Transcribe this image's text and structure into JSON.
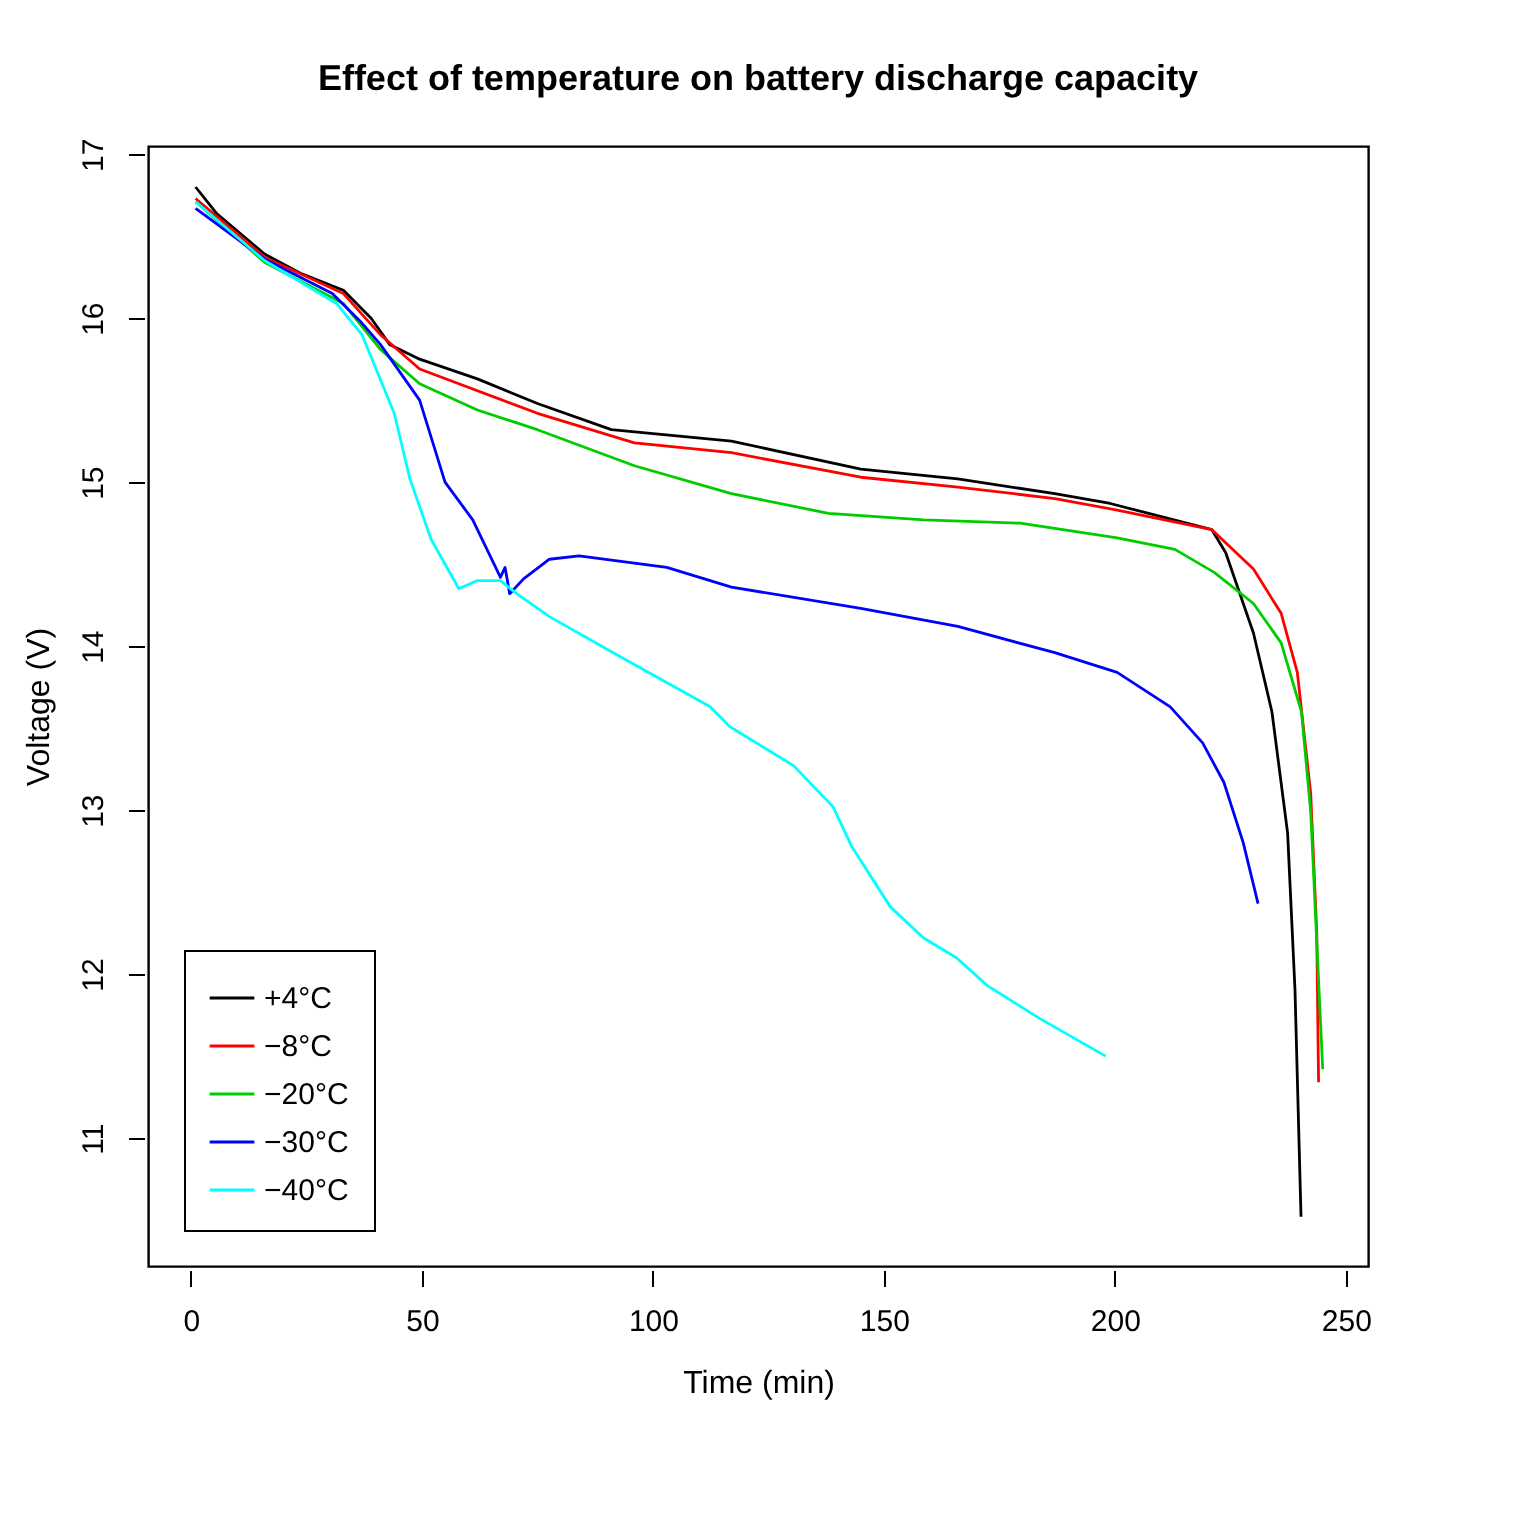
{
  "chart_data": {
    "type": "line",
    "title": "Effect of temperature on battery discharge capacity",
    "xlabel": "Time (min)",
    "ylabel": "Voltage (V)",
    "xlim": [
      -9.3,
      254.8
    ],
    "ylim": [
      10.22,
      17.05
    ],
    "xticks": [
      0,
      50,
      100,
      150,
      200,
      250
    ],
    "yticks": [
      11,
      12,
      13,
      14,
      15,
      16,
      17
    ],
    "grid": false,
    "legend": "bottom left",
    "line_style": "solid",
    "marker": "none",
    "series": [
      {
        "name": "+4°C",
        "color": "#000000",
        "x": [
          1,
          5.5,
          16,
          24,
          33,
          39,
          43,
          49.5,
          62,
          75,
          91,
          117,
          145,
          166,
          187,
          199,
          221,
          224,
          230,
          234,
          237.4,
          239,
          240.3
        ],
        "values": [
          16.8,
          16.64,
          16.39,
          16.27,
          16.17,
          16.0,
          15.84,
          15.75,
          15.63,
          15.48,
          15.32,
          15.25,
          15.08,
          15.02,
          14.93,
          14.87,
          14.71,
          14.57,
          14.08,
          13.6,
          12.86,
          11.9,
          10.52
        ]
      },
      {
        "name": "−8°C",
        "color": "#ff0000",
        "x": [
          1,
          16,
          33,
          41,
          49.5,
          75,
          96,
          117,
          145,
          166,
          187,
          200.5,
          221,
          230,
          236,
          239.5,
          242.4,
          243.7,
          244.1
        ],
        "values": [
          16.73,
          16.37,
          16.15,
          15.9,
          15.69,
          15.42,
          15.24,
          15.18,
          15.03,
          14.97,
          14.9,
          14.83,
          14.71,
          14.47,
          14.2,
          13.84,
          13.1,
          12.26,
          11.34
        ]
      },
      {
        "name": "−20°C",
        "color": "#00cd00",
        "x": [
          1,
          16,
          33,
          41,
          49.5,
          62,
          75,
          96,
          117,
          138,
          158.6,
          179.5,
          200.5,
          213,
          221.5,
          230,
          236,
          240.4,
          242.4,
          245
        ],
        "values": [
          16.71,
          16.34,
          16.09,
          15.81,
          15.6,
          15.44,
          15.32,
          15.1,
          14.93,
          14.81,
          14.77,
          14.75,
          14.66,
          14.59,
          14.45,
          14.26,
          14.02,
          13.6,
          12.99,
          11.42
        ]
      },
      {
        "name": "−30°C",
        "color": "#0000ff",
        "x": [
          1,
          16,
          30.6,
          37,
          41,
          49.5,
          55,
          61,
          67,
          68,
          69,
          72,
          77.6,
          84,
          103,
          117,
          145,
          166,
          187,
          200.5,
          212,
          219,
          223.6,
          227.8,
          231
        ],
        "values": [
          16.67,
          16.36,
          16.15,
          15.97,
          15.84,
          15.5,
          15.0,
          14.77,
          14.42,
          14.48,
          14.32,
          14.41,
          14.53,
          14.55,
          14.48,
          14.36,
          14.23,
          14.12,
          13.96,
          13.84,
          13.63,
          13.41,
          13.17,
          12.8,
          12.43
        ]
      },
      {
        "name": "−40°C",
        "color": "#00ffff",
        "x": [
          1,
          16,
          31.5,
          37,
          44,
          47.4,
          52,
          58,
          62,
          67,
          70.5,
          77.6,
          91.4,
          112.4,
          116.6,
          130.5,
          139,
          143,
          151.4,
          158.6,
          165.7,
          172.4,
          183.7,
          198
        ],
        "values": [
          16.71,
          16.35,
          16.09,
          15.9,
          15.42,
          15.02,
          14.65,
          14.35,
          14.4,
          14.4,
          14.32,
          14.18,
          13.96,
          13.63,
          13.51,
          13.27,
          13.02,
          12.78,
          12.41,
          12.22,
          12.1,
          11.93,
          11.73,
          11.5
        ]
      }
    ]
  }
}
